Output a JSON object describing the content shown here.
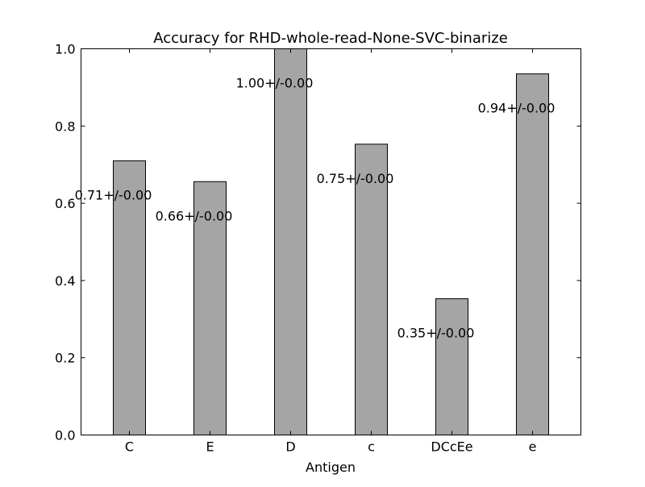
{
  "chart_data": {
    "type": "bar",
    "title": "Accuracy for RHD-whole-read-None-SVC-binarize",
    "xlabel": "Antigen",
    "ylabel": "",
    "categories": [
      "C",
      "E",
      "D",
      "c",
      "DCcEe",
      "e"
    ],
    "values": [
      0.71,
      0.656,
      1.0,
      0.753,
      0.353,
      0.935
    ],
    "labels": [
      "0.71+/-0.00",
      "0.66+/-0.00",
      "1.00+/-0.00",
      "0.75+/-0.00",
      "0.35+/-0.00",
      "0.94+/-0.00"
    ],
    "ylim": [
      0,
      1.0
    ],
    "yticks": [
      0.0,
      0.2,
      0.4,
      0.6,
      0.8,
      1.0
    ],
    "ytick_labels": [
      "0.0",
      "0.2",
      "0.4",
      "0.6",
      "0.8",
      "1.0"
    ],
    "grid": false,
    "legend": "none",
    "bar_color": "#a5a5a5",
    "edge_color": "#000000"
  }
}
